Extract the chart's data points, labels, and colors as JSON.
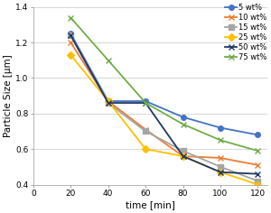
{
  "xlabel": "time [min]",
  "ylabel": "Particle Size [μm]",
  "xlim": [
    0,
    125
  ],
  "ylim": [
    0.4,
    1.4
  ],
  "xticks": [
    0,
    20,
    40,
    60,
    80,
    100,
    120
  ],
  "yticks": [
    0.4,
    0.6,
    0.8,
    1.0,
    1.2,
    1.4
  ],
  "series": [
    {
      "label": "5 wt%",
      "color": "#4472C4",
      "marker": "o",
      "markersize": 4,
      "linewidth": 1.3,
      "x": [
        20,
        40,
        60,
        80,
        100,
        120
      ],
      "y": [
        1.25,
        0.87,
        0.87,
        0.78,
        0.72,
        0.68
      ]
    },
    {
      "label": "10 wt%",
      "color": "#ED7D31",
      "marker": "x",
      "markersize": 4,
      "linewidth": 1.3,
      "x": [
        20,
        40,
        60,
        80,
        100,
        120
      ],
      "y": [
        1.2,
        0.87,
        0.71,
        0.56,
        0.55,
        0.51
      ]
    },
    {
      "label": "15 wt%",
      "color": "#A5A5A5",
      "marker": "s",
      "markersize": 4,
      "linewidth": 1.3,
      "x": [
        20,
        40,
        60,
        80,
        100,
        120
      ],
      "y": [
        1.24,
        0.86,
        0.7,
        0.59,
        0.5,
        0.42
      ]
    },
    {
      "label": "25 wt%",
      "color": "#FFC000",
      "marker": "D",
      "markersize": 4,
      "linewidth": 1.3,
      "x": [
        20,
        40,
        60,
        80,
        100,
        120
      ],
      "y": [
        1.13,
        0.87,
        0.6,
        0.56,
        0.47,
        0.4
      ]
    },
    {
      "label": "50 wt%",
      "color": "#4472C4",
      "marker": "x",
      "markersize": 4,
      "linewidth": 1.3,
      "x": [
        20,
        40,
        60,
        80,
        100,
        120
      ],
      "y": [
        1.24,
        0.86,
        0.86,
        0.56,
        0.47,
        0.46
      ]
    },
    {
      "label": "75 wt%",
      "color": "#70AD47",
      "marker": "x",
      "markersize": 4,
      "linewidth": 1.3,
      "x": [
        20,
        40,
        60,
        80,
        100,
        120
      ],
      "y": [
        1.34,
        1.1,
        0.86,
        0.74,
        0.65,
        0.59
      ]
    }
  ],
  "background_color": "#FFFFFF",
  "grid_color": "#D0D0D0",
  "legend_fontsize": 6.0,
  "axis_label_fontsize": 7.5,
  "tick_fontsize": 6.5
}
